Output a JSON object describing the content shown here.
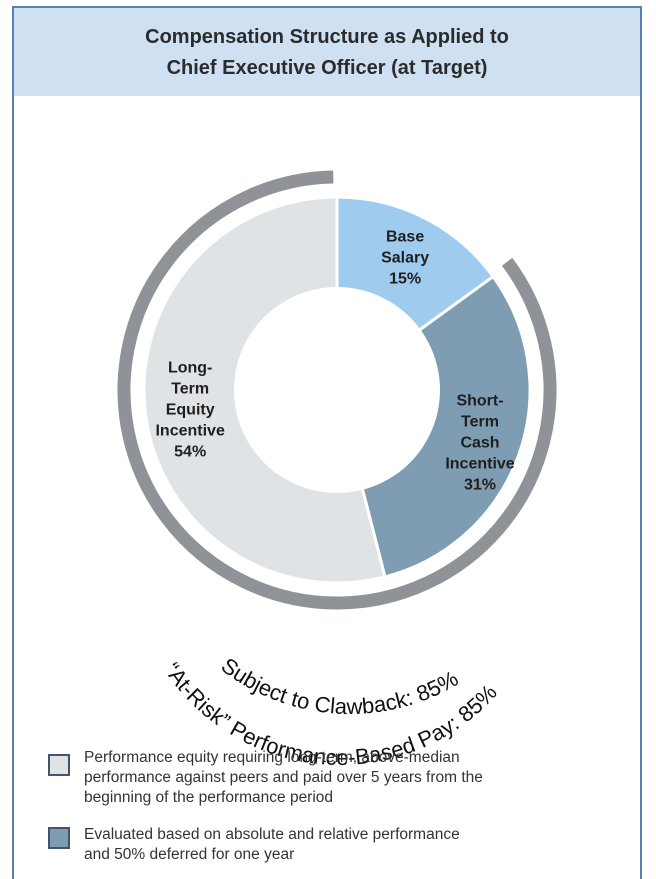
{
  "header": {
    "title_line1": "Compensation Structure as Applied to",
    "title_line2": "Chief Executive Officer (at Target)"
  },
  "chart_data": {
    "type": "pie",
    "style": "donut",
    "title": "Compensation Structure as Applied to Chief Executive Officer (at Target)",
    "slices": [
      {
        "label_lines": [
          "Base",
          "Salary",
          "15%"
        ],
        "name": "Base Salary",
        "value": 15,
        "color": "#9fcbef"
      },
      {
        "label_lines": [
          "Short-",
          "Term",
          "Cash",
          "Incentive",
          "31%"
        ],
        "name": "Short-Term Cash Incentive",
        "value": 31,
        "color": "#7e9db3"
      },
      {
        "label_lines": [
          "Long-",
          "Term",
          "Equity",
          "Incentive",
          "54%"
        ],
        "name": "Long-Term Equity Incentive",
        "value": 54,
        "color": "#dfe3e6"
      }
    ],
    "annotations": [
      {
        "text": "“At-Risk” Performance-Based Pay: 85%",
        "value": 85,
        "color": "#8f9398"
      },
      {
        "text": "Subject to Clawback: 85%",
        "value": 85
      }
    ]
  },
  "legend": [
    {
      "swatch_color": "#dfe3e6",
      "lines": [
        "Performance equity requiring long-term, above-median",
        "performance against peers and paid over 5 years from the",
        "beginning of the performance period"
      ]
    },
    {
      "swatch_color": "#7e9db3",
      "lines": [
        "Evaluated based on absolute and relative performance",
        "and 50% deferred for one year"
      ]
    }
  ]
}
